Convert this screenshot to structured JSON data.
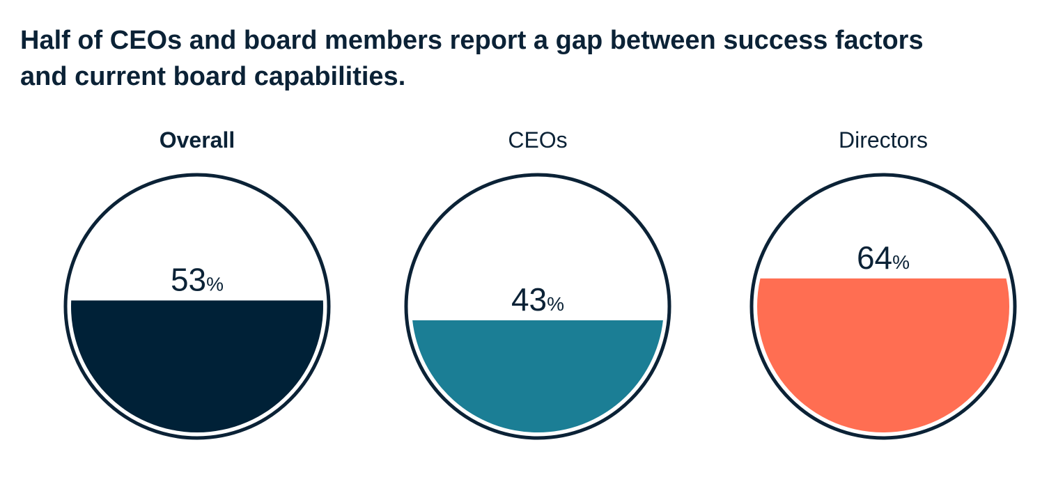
{
  "title": "Half of CEOs and board members report a gap between success factors and current board capabilities.",
  "chart_data": {
    "type": "gauge",
    "unit": "%",
    "series": [
      {
        "name": "Overall",
        "value": 53,
        "color": "#002137",
        "emphasized": true
      },
      {
        "name": "CEOs",
        "value": 43,
        "color": "#1b7e95",
        "emphasized": false
      },
      {
        "name": "Directors",
        "value": 64,
        "color": "#ff6e52",
        "emphasized": false
      }
    ],
    "outline_color": "#0b2236"
  }
}
